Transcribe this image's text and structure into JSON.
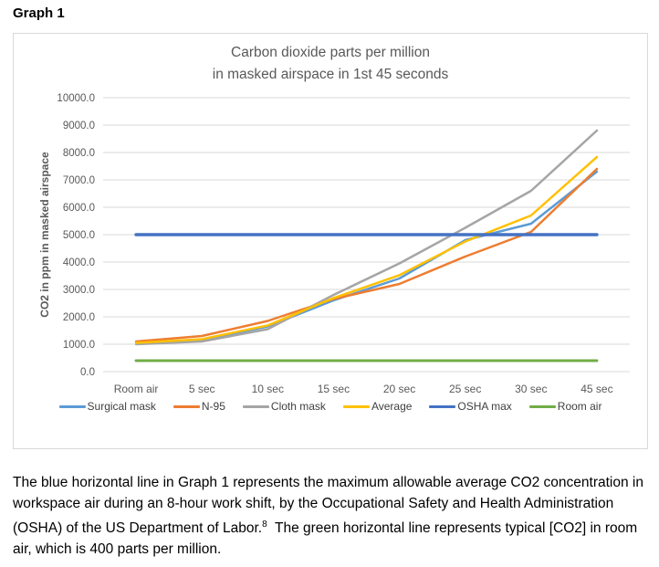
{
  "page": {
    "heading": "Graph 1"
  },
  "chart_data": {
    "type": "line",
    "title": "Carbon dioxide parts per million in masked airspace in 1st 45 seconds",
    "title_lines": [
      "Carbon dioxide parts per million",
      "in masked airspace in 1st 45 seconds"
    ],
    "xlabel": "",
    "ylabel": "CO2 in ppm in masked airspace",
    "categories": [
      "Room air",
      "5 sec",
      "10 sec",
      "15 sec",
      "20 sec",
      "25 sec",
      "30 sec",
      "45 sec"
    ],
    "ylim": [
      0,
      10000
    ],
    "yticks": [
      "0.0",
      "1000.0",
      "2000.0",
      "3000.0",
      "4000.0",
      "5000.0",
      "6000.0",
      "7000.0",
      "8000.0",
      "9000.0",
      "10000.0"
    ],
    "grid": true,
    "grid_color": "#d9d9d9",
    "axis_text_color": "#595959",
    "legend_position": "bottom",
    "series": [
      {
        "name": "Surgical mask",
        "color": "#5B9BD5",
        "line_width": 2.5,
        "values": [
          1050,
          1150,
          1650,
          2600,
          3400,
          4800,
          5400,
          7300
        ]
      },
      {
        "name": "N-95",
        "color": "#ED7D31",
        "line_width": 2.5,
        "values": [
          1100,
          1300,
          1850,
          2650,
          3200,
          4200,
          5100,
          7400
        ]
      },
      {
        "name": "Cloth mask",
        "color": "#A5A5A5",
        "line_width": 2.5,
        "values": [
          1000,
          1100,
          1550,
          2800,
          3950,
          5250,
          6600,
          8800
        ]
      },
      {
        "name": "Average",
        "color": "#FFC000",
        "line_width": 2.5,
        "values": [
          1050,
          1185,
          1685,
          2685,
          3520,
          4750,
          5700,
          7835
        ]
      },
      {
        "name": "OSHA max",
        "color": "#4472C4",
        "line_width": 3.5,
        "values": [
          5000,
          5000,
          5000,
          5000,
          5000,
          5000,
          5000,
          5000
        ]
      },
      {
        "name": "Room air",
        "color": "#70AD47",
        "line_width": 3,
        "values": [
          400,
          400,
          400,
          400,
          400,
          400,
          400,
          400
        ]
      }
    ]
  },
  "caption": {
    "before_sup": "The blue horizontal line in Graph 1 represents the maximum allowable average CO2 concentration in workspace air during an 8-hour work shift, by the Occupational Safety and Health Administration (OSHA) of the US Department of Labor.",
    "sup": "8",
    "after_sup": "  The green horizontal line represents typical [CO2] in room air, which is 400 parts per million."
  }
}
